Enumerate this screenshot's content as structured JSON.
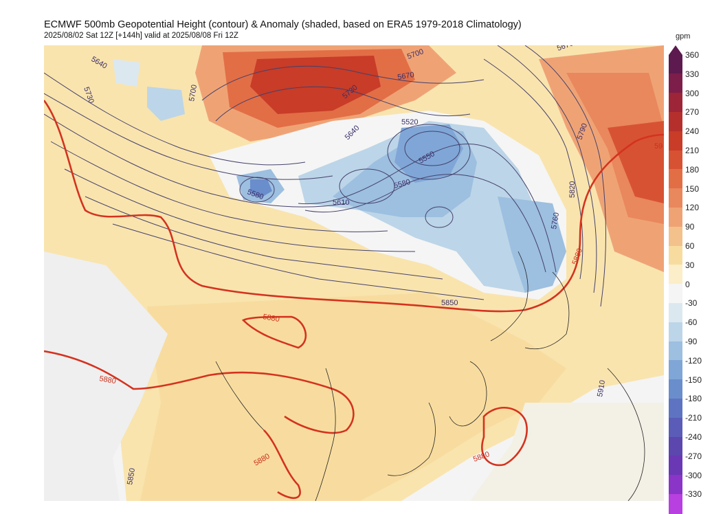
{
  "header": {
    "title": "ECMWF 500mb Geopotential Height (contour) & Anomaly (shaded, based on ERA5 1979-2018 Climatology)",
    "subtitle": "2025/08/02 Sat 12Z [+144h] valid at 2025/08/08 Fri 12Z"
  },
  "colorbar": {
    "unit": "gpm",
    "labels": [
      "360",
      "330",
      "300",
      "270",
      "240",
      "210",
      "180",
      "150",
      "120",
      "90",
      "60",
      "30",
      "0",
      "-30",
      "-60",
      "-90",
      "-120",
      "-150",
      "-180",
      "-210",
      "-240",
      "-270",
      "-300",
      "-330"
    ],
    "colors": [
      "#5c1a4f",
      "#7d1e4a",
      "#9e2438",
      "#b5302c",
      "#c83c28",
      "#d75233",
      "#e26e46",
      "#e9875d",
      "#efa375",
      "#f3c18c",
      "#f8dc9f",
      "#fbeec8",
      "#f5f5f5",
      "#dce8f0",
      "#bcd5e8",
      "#9dbfe0",
      "#7fa6d6",
      "#6a8dcc",
      "#5e74c2",
      "#5a5cb8",
      "#5b47ae",
      "#6a38b5",
      "#8a35c8",
      "#b840e0"
    ]
  },
  "map": {
    "contour_labels": [
      {
        "text": "5640"
      },
      {
        "text": "5730"
      },
      {
        "text": "5700"
      },
      {
        "text": "5670"
      },
      {
        "text": "5700"
      },
      {
        "text": "5730"
      },
      {
        "text": "5640"
      },
      {
        "text": "5520"
      },
      {
        "text": "5550"
      },
      {
        "text": "5580"
      },
      {
        "text": "5610"
      },
      {
        "text": "5580"
      },
      {
        "text": "5790"
      },
      {
        "text": "5820"
      },
      {
        "text": "5760"
      },
      {
        "text": "5880"
      },
      {
        "text": "5850"
      },
      {
        "text": "5880"
      },
      {
        "text": "5880"
      },
      {
        "text": "5880"
      },
      {
        "text": "5910"
      },
      {
        "text": "5880"
      },
      {
        "text": "5850"
      },
      {
        "text": "5670"
      },
      {
        "text": "59"
      }
    ]
  }
}
